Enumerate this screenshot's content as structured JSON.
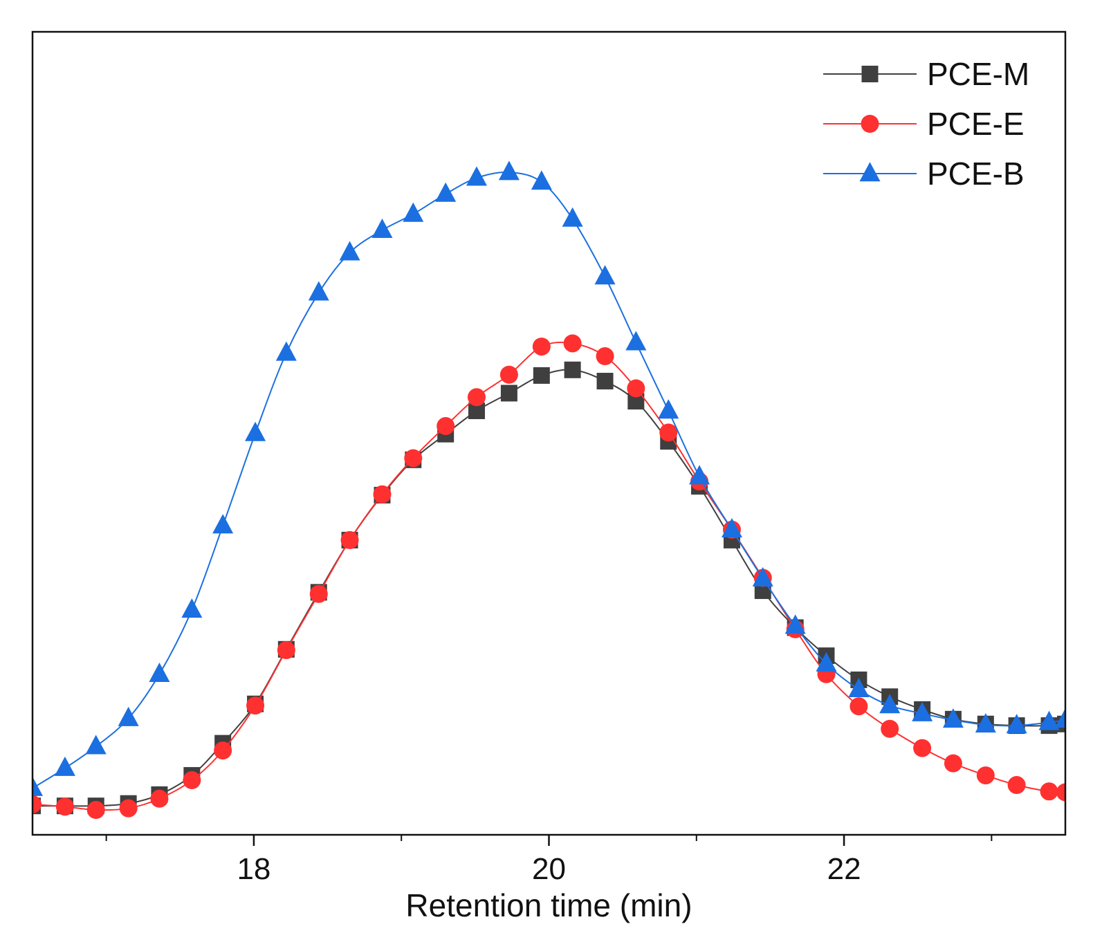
{
  "chart_data": {
    "type": "line",
    "title": "",
    "xlabel": "Retention time (min)",
    "ylabel": "",
    "xlim": [
      16.5,
      23.5
    ],
    "ylim": [
      0,
      100
    ],
    "xticks": [
      18,
      20,
      22
    ],
    "xtick_labels": [
      "18",
      "20",
      "22"
    ],
    "yticks_visible": false,
    "grid": false,
    "legend_position": "top-right",
    "series": [
      {
        "name": "PCE-M",
        "color": "#3f3f3f",
        "marker": "square",
        "x": [
          16.5,
          16.72,
          16.93,
          17.15,
          17.36,
          17.58,
          17.79,
          18.01,
          18.22,
          18.44,
          18.65,
          18.87,
          19.08,
          19.3,
          19.51,
          19.73,
          19.95,
          20.16,
          20.38,
          20.59,
          20.81,
          21.02,
          21.24,
          21.45,
          21.67,
          21.88,
          22.1,
          22.31,
          22.53,
          22.74,
          22.96,
          23.17,
          23.39,
          23.5
        ],
        "y": [
          3.6,
          3.6,
          3.6,
          3.9,
          5.0,
          7.4,
          11.4,
          16.3,
          23.1,
          30.2,
          36.7,
          42.3,
          46.7,
          49.9,
          52.8,
          55.0,
          57.2,
          57.9,
          56.5,
          54.0,
          49.0,
          43.4,
          36.7,
          30.4,
          25.8,
          22.3,
          19.3,
          17.2,
          15.6,
          14.4,
          13.8,
          13.6,
          13.6,
          13.8
        ]
      },
      {
        "name": "PCE-E",
        "color": "#ff3030",
        "marker": "circle",
        "x": [
          16.5,
          16.72,
          16.93,
          17.15,
          17.36,
          17.58,
          17.79,
          18.01,
          18.22,
          18.44,
          18.65,
          18.87,
          19.08,
          19.3,
          19.51,
          19.73,
          19.95,
          20.16,
          20.38,
          20.59,
          20.81,
          21.02,
          21.24,
          21.45,
          21.67,
          21.88,
          22.1,
          22.31,
          22.53,
          22.74,
          22.96,
          23.17,
          23.39,
          23.5
        ],
        "y": [
          3.8,
          3.5,
          3.1,
          3.3,
          4.5,
          6.8,
          10.5,
          16.1,
          23.0,
          30.0,
          36.7,
          42.4,
          46.9,
          50.9,
          54.5,
          57.3,
          60.8,
          61.2,
          59.6,
          55.6,
          50.1,
          44.0,
          38.0,
          32.0,
          25.6,
          20.0,
          16.0,
          13.2,
          10.8,
          8.9,
          7.4,
          6.2,
          5.4,
          5.3
        ]
      },
      {
        "name": "PCE-B",
        "color": "#1b6fe0",
        "marker": "triangle",
        "x": [
          16.5,
          16.72,
          16.93,
          17.15,
          17.36,
          17.58,
          17.79,
          18.01,
          18.22,
          18.44,
          18.65,
          18.87,
          19.08,
          19.3,
          19.51,
          19.73,
          19.95,
          20.16,
          20.38,
          20.59,
          20.81,
          21.02,
          21.24,
          21.45,
          21.67,
          21.88,
          22.1,
          22.31,
          22.53,
          22.74,
          22.96,
          23.17,
          23.39,
          23.5
        ],
        "y": [
          5.8,
          8.3,
          11.0,
          14.5,
          20.0,
          28.0,
          38.5,
          50.0,
          60.0,
          67.5,
          72.5,
          75.3,
          77.3,
          79.8,
          81.8,
          82.5,
          81.3,
          76.7,
          69.5,
          61.3,
          52.8,
          44.6,
          38.0,
          31.9,
          26.0,
          21.3,
          18.1,
          16.1,
          15.1,
          14.3,
          13.7,
          13.6,
          14.0,
          14.3
        ]
      }
    ]
  }
}
